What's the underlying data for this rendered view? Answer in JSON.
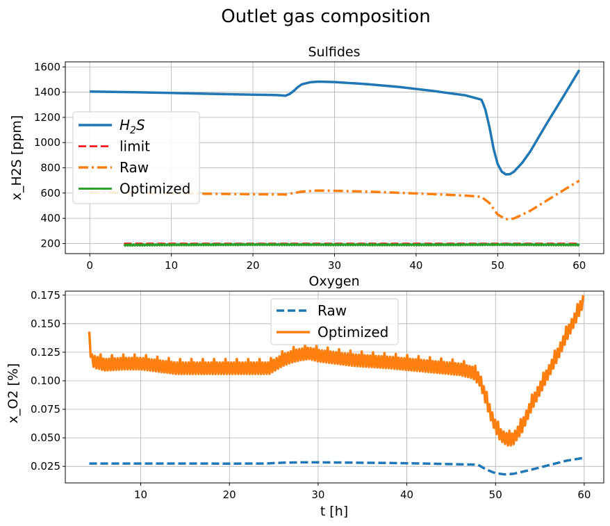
{
  "figure": {
    "title": "Outlet gas composition"
  },
  "chart_data": [
    {
      "type": "line",
      "title": "Sulfides",
      "xlabel": "",
      "ylabel": "x_H2S [ppm]",
      "xlim": [
        -3,
        63
      ],
      "ylim": [
        120,
        1640
      ],
      "xticks": [
        0,
        10,
        20,
        30,
        40,
        50,
        60
      ],
      "yticks": [
        200,
        400,
        600,
        800,
        1000,
        1200,
        1400,
        1600
      ],
      "grid": true,
      "legend": "center-left",
      "series": [
        {
          "name": "H2S",
          "legend_base": "H",
          "legend_sub": "2",
          "legend_tail": "S",
          "color": "#1f77b4",
          "style": "solid",
          "width": 3.5,
          "x": [
            0,
            5,
            10,
            15,
            20,
            23,
            24,
            24.5,
            25,
            25.5,
            26,
            27,
            28,
            30,
            34,
            38,
            42,
            46,
            47,
            48,
            48.2,
            48.5,
            49,
            49.5,
            50,
            50.5,
            51,
            51.5,
            52,
            53,
            54,
            56,
            58,
            60
          ],
          "y": [
            1405,
            1400,
            1393,
            1386,
            1380,
            1376,
            1372,
            1385,
            1410,
            1440,
            1462,
            1478,
            1483,
            1480,
            1463,
            1440,
            1410,
            1375,
            1358,
            1340,
            1312,
            1260,
            1120,
            950,
            830,
            770,
            748,
            750,
            770,
            840,
            930,
            1150,
            1360,
            1575
          ]
        },
        {
          "name": "limit",
          "color": "#ff0000",
          "style": "dashed",
          "width": 2.5,
          "x": [
            4.2,
            60
          ],
          "y": [
            200,
            200
          ]
        },
        {
          "name": "Raw",
          "color": "#ff7f0e",
          "style": "dashdot",
          "width": 3.5,
          "x": [
            0,
            5,
            10,
            15,
            20,
            23,
            24,
            25,
            26,
            28,
            30,
            34,
            38,
            42,
            46,
            47,
            48,
            49,
            50,
            51,
            52,
            54,
            56,
            58,
            60
          ],
          "y": [
            605,
            603,
            598,
            594,
            591,
            589,
            588,
            600,
            612,
            620,
            618,
            612,
            602,
            592,
            580,
            576,
            570,
            520,
            430,
            392,
            398,
            460,
            540,
            620,
            698
          ]
        },
        {
          "name": "Optimized",
          "color": "#2ca02c",
          "style": "solid-jitter",
          "width": 3,
          "x": [
            4.2,
            10,
            20,
            30,
            40,
            50,
            60
          ],
          "y": [
            188,
            190,
            192,
            191,
            190,
            192,
            190
          ]
        }
      ]
    },
    {
      "type": "line",
      "title": "Oxygen",
      "xlabel": "t [h]",
      "ylabel": "x_O2 [%]",
      "xlim": [
        1.5,
        62.2
      ],
      "ylim": [
        0.0105,
        0.1785
      ],
      "xticks": [
        10,
        20,
        30,
        40,
        50,
        60
      ],
      "yticks": [
        0.025,
        0.05,
        0.075,
        0.1,
        0.125,
        0.15,
        0.175
      ],
      "ytick_labels": [
        "0.025",
        "0.050",
        "0.075",
        "0.100",
        "0.125",
        "0.150",
        "0.175"
      ],
      "grid": true,
      "legend": "upper-center",
      "series": [
        {
          "name": "Raw",
          "color": "#1f77b4",
          "style": "dashed",
          "width": 3.5,
          "x": [
            4.2,
            10,
            20,
            24,
            26,
            28,
            30,
            34,
            38,
            42,
            46,
            48,
            49,
            50,
            51,
            52,
            54,
            56,
            58,
            60
          ],
          "y": [
            0.0275,
            0.0275,
            0.0274,
            0.0275,
            0.0282,
            0.0285,
            0.0285,
            0.0283,
            0.028,
            0.0275,
            0.0268,
            0.0265,
            0.022,
            0.019,
            0.018,
            0.0185,
            0.022,
            0.026,
            0.03,
            0.0325
          ]
        },
        {
          "name": "Optimized",
          "color": "#ff7f0e",
          "style": "solid-jitter",
          "width": 3.5,
          "x": [
            4.2,
            4.5,
            5,
            6,
            8,
            10,
            14,
            20,
            24.5,
            26,
            27,
            28,
            29,
            30,
            32,
            34,
            38,
            42,
            46,
            47.5,
            48.3,
            48.8,
            49.5,
            50,
            50.5,
            51,
            51.5,
            52,
            53,
            54,
            55,
            56,
            57,
            58,
            59,
            60
          ],
          "y": [
            0.135,
            0.118,
            0.116,
            0.114,
            0.115,
            0.115,
            0.111,
            0.111,
            0.111,
            0.118,
            0.121,
            0.123,
            0.124,
            0.122,
            0.12,
            0.118,
            0.116,
            0.113,
            0.11,
            0.107,
            0.1,
            0.087,
            0.07,
            0.06,
            0.053,
            0.05,
            0.048,
            0.049,
            0.06,
            0.078,
            0.093,
            0.108,
            0.123,
            0.14,
            0.155,
            0.172
          ]
        }
      ]
    }
  ]
}
